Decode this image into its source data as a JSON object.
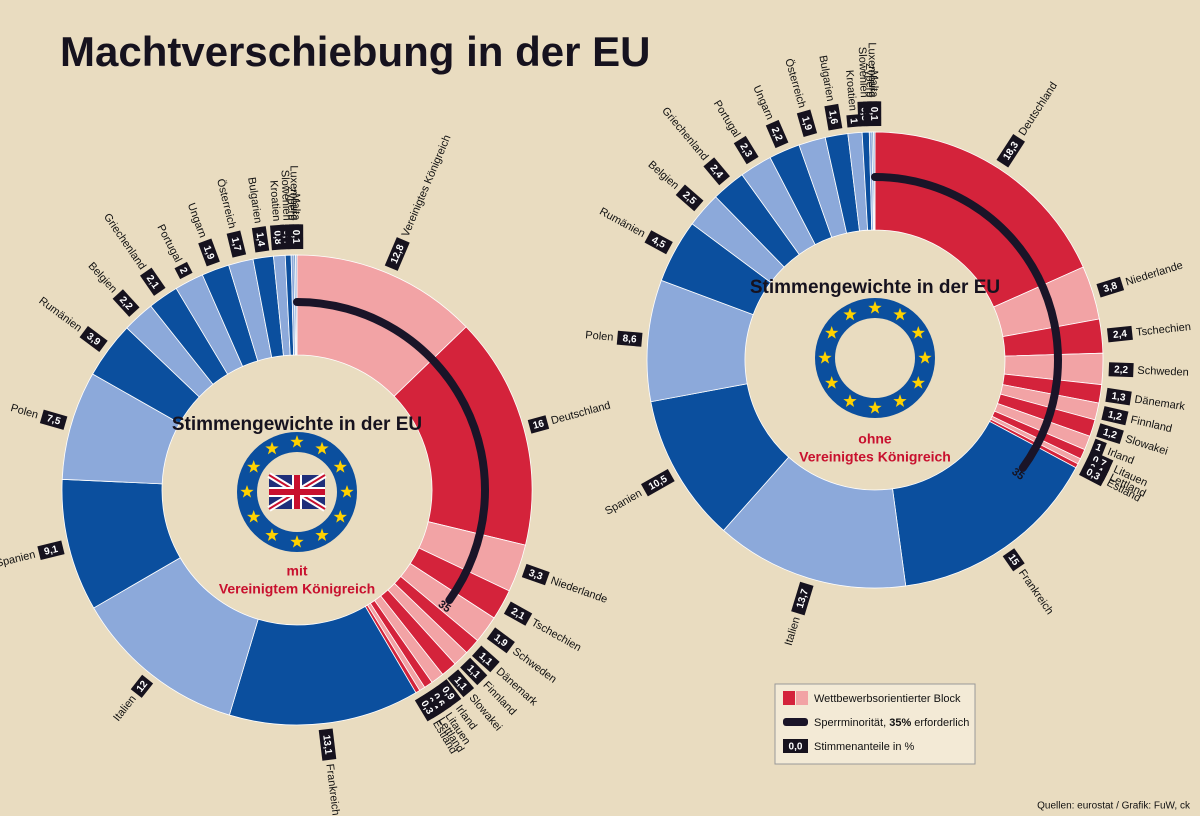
{
  "title": "Machtverschiebung in der EU",
  "chart_data": [
    {
      "type": "pie",
      "title": "Stimmengewichte in der EU",
      "annotations": [
        "mit",
        "Vereinigtem Königreich"
      ],
      "categories": [
        "Vereinigtes Königreich",
        "Deutschland",
        "Niederlande",
        "Tschechien",
        "Schweden",
        "Dänemark",
        "Finnland",
        "Slowakei",
        "Irland",
        "Litauen",
        "Lettland",
        "Estland",
        "Frankreich",
        "Italien",
        "Spanien",
        "Polen",
        "Rumänien",
        "Belgien",
        "Griechenland",
        "Portugal",
        "Ungarn",
        "Österreich",
        "Bulgarien",
        "Kroatien",
        "Slowenien",
        "Zypern",
        "Luxemburg",
        "Malta"
      ],
      "values": [
        12.8,
        16,
        3.3,
        2.1,
        1.9,
        1.1,
        1.1,
        1.1,
        0.9,
        0.6,
        0.4,
        0.3,
        13.1,
        12,
        9.1,
        7.5,
        3.9,
        2.2,
        2.1,
        2,
        1.9,
        1.7,
        1.4,
        0.8,
        0.4,
        0.2,
        0.1,
        0.1
      ],
      "value_labels": [
        "12,8",
        "16",
        "3,3",
        "2,1",
        "1,9",
        "1,1",
        "1,1",
        "1,1",
        "0,9",
        "0,6",
        "0,4",
        "0,3",
        "13,1",
        "12",
        "9,1",
        "7,5",
        "3,9",
        "2,2",
        "2,1",
        "2",
        "1,9",
        "1,7",
        "1,4",
        "0,8",
        "0,4",
        "0,2",
        "0,1",
        "0,1"
      ],
      "colors": [
        "#f2a3a5",
        "#d4233b",
        "#f2a3a5",
        "#d4233b",
        "#f2a3a5",
        "#d4233b",
        "#f2a3a5",
        "#d4233b",
        "#f2a3a5",
        "#d4233b",
        "#f2a3a5",
        "#d4233b",
        "#0b4f9e",
        "#8ca9da",
        "#0b4f9e",
        "#8ca9da",
        "#0b4f9e",
        "#8ca9da",
        "#0b4f9e",
        "#8ca9da",
        "#0b4f9e",
        "#8ca9da",
        "#0b4f9e",
        "#8ca9da",
        "#0b4f9e",
        "#8ca9da",
        "#0b4f9e",
        "#8ca9da"
      ],
      "threshold": 35
    },
    {
      "type": "pie",
      "title": "Stimmengewichte in der EU",
      "annotations": [
        "ohne",
        "Vereinigtes Königreich"
      ],
      "categories": [
        "Deutschland",
        "Niederlande",
        "Tschechien",
        "Schweden",
        "Dänemark",
        "Finnland",
        "Slowakei",
        "Irland",
        "Litauen",
        "Lettland",
        "Estland",
        "Frankreich",
        "Italien",
        "Spanien",
        "Polen",
        "Rumänien",
        "Belgien",
        "Griechenland",
        "Portugal",
        "Ungarn",
        "Österreich",
        "Bulgarien",
        "Kroatien",
        "Slowenien",
        "Zypern",
        "Luxemburg",
        "Malta"
      ],
      "values": [
        18.3,
        3.8,
        2.4,
        2.2,
        1.3,
        1.2,
        1.2,
        1,
        0.7,
        0.4,
        0.3,
        15,
        13.7,
        10.5,
        8.6,
        4.5,
        2.5,
        2.4,
        2.3,
        2.2,
        1.9,
        1.6,
        1,
        0.5,
        0.2,
        0.1,
        0.1
      ],
      "value_labels": [
        "18,3",
        "3,8",
        "2,4",
        "2,2",
        "1,3",
        "1,2",
        "1,2",
        "1",
        "0,7",
        "0,4",
        "0,3",
        "15",
        "13,7",
        "10,5",
        "8,6",
        "4,5",
        "2,5",
        "2,4",
        "2,3",
        "2,2",
        "1,9",
        "1,6",
        "1",
        "0,5",
        "0,2",
        "0,1",
        "0,1"
      ],
      "colors": [
        "#d4233b",
        "#f2a3a5",
        "#d4233b",
        "#f2a3a5",
        "#d4233b",
        "#f2a3a5",
        "#d4233b",
        "#f2a3a5",
        "#d4233b",
        "#f2a3a5",
        "#d4233b",
        "#0b4f9e",
        "#8ca9da",
        "#0b4f9e",
        "#8ca9da",
        "#0b4f9e",
        "#8ca9da",
        "#0b4f9e",
        "#8ca9da",
        "#0b4f9e",
        "#8ca9da",
        "#0b4f9e",
        "#8ca9da",
        "#0b4f9e",
        "#8ca9da",
        "#0b4f9e",
        "#8ca9da"
      ],
      "threshold": 35
    }
  ],
  "legend": {
    "items": [
      {
        "label": "Wettbewerbsorientierter Block"
      },
      {
        "label_parts": [
          "Sperrminorität, ",
          "35%",
          " erforderlich"
        ]
      },
      {
        "key": "0,0",
        "label": "Stimmenanteile in %"
      }
    ]
  },
  "source": "Quellen: eurostat / Grafik: FuW, ck"
}
